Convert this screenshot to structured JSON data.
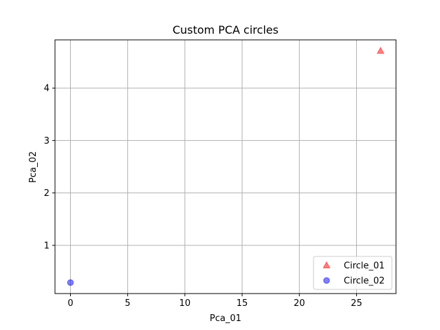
{
  "chart_data": {
    "type": "scatter",
    "title": "Custom PCA circles",
    "xlabel": "Pca_01",
    "ylabel": "Pca_02",
    "xlim": [
      -1.35,
      28.45
    ],
    "ylim": [
      0.08,
      4.92
    ],
    "xticks": [
      0,
      5,
      10,
      15,
      20,
      25
    ],
    "yticks": [
      1,
      2,
      3,
      4
    ],
    "grid": true,
    "legend": "lower-right",
    "series": [
      {
        "name": "Circle_01",
        "marker": "triangle",
        "color": "#ff0000",
        "points": [
          [
            27.1,
            4.71
          ]
        ]
      },
      {
        "name": "Circle_02",
        "marker": "circle",
        "color": "#0000ff",
        "points": [
          [
            0.0,
            0.29
          ]
        ]
      }
    ]
  }
}
